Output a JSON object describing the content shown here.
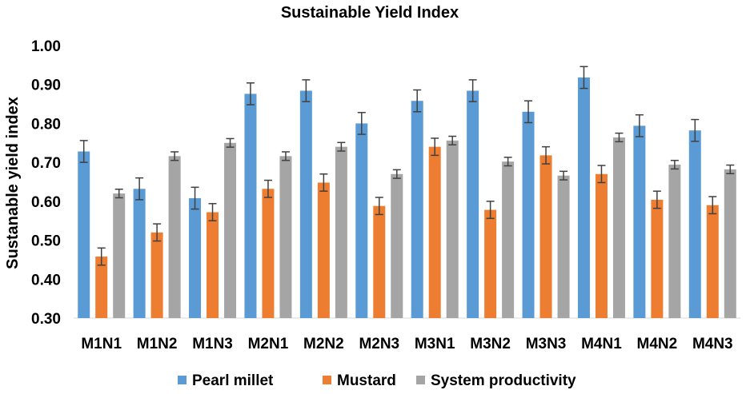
{
  "chart_data": {
    "type": "bar",
    "title": "Sustainable Yield Index",
    "xlabel": "",
    "ylabel": "Sustanable yield index",
    "ylim": [
      0.3,
      1.0
    ],
    "yticks": [
      "0.30",
      "0.40",
      "0.50",
      "0.60",
      "0.70",
      "0.80",
      "0.90",
      "1.00"
    ],
    "categories": [
      "M1N1",
      "M1N2",
      "M1N3",
      "M2N1",
      "M2N2",
      "M2N3",
      "M3N1",
      "M3N2",
      "M3N3",
      "M4N1",
      "M4N2",
      "M4N3"
    ],
    "legend_position": "bottom",
    "series": [
      {
        "name": "Pearl millet",
        "color": "#5B9BD5",
        "values": [
          0.728,
          0.632,
          0.608,
          0.876,
          0.884,
          0.8,
          0.858,
          0.884,
          0.83,
          0.918,
          0.794,
          0.782
        ],
        "errors": [
          0.028,
          0.028,
          0.028,
          0.028,
          0.028,
          0.028,
          0.028,
          0.028,
          0.028,
          0.028,
          0.028,
          0.028
        ]
      },
      {
        "name": "Mustard",
        "color": "#ED7D31",
        "values": [
          0.458,
          0.52,
          0.572,
          0.632,
          0.648,
          0.588,
          0.74,
          0.578,
          0.718,
          0.67,
          0.604,
          0.59
        ],
        "errors": [
          0.022,
          0.022,
          0.022,
          0.022,
          0.022,
          0.022,
          0.022,
          0.022,
          0.022,
          0.022,
          0.022,
          0.022
        ]
      },
      {
        "name": "System productivity",
        "color": "#A5A5A5",
        "values": [
          0.62,
          0.716,
          0.75,
          0.716,
          0.74,
          0.67,
          0.756,
          0.702,
          0.666,
          0.764,
          0.694,
          0.682
        ],
        "errors": [
          0.011,
          0.011,
          0.011,
          0.011,
          0.011,
          0.011,
          0.011,
          0.011,
          0.011,
          0.011,
          0.011,
          0.011
        ]
      }
    ]
  }
}
